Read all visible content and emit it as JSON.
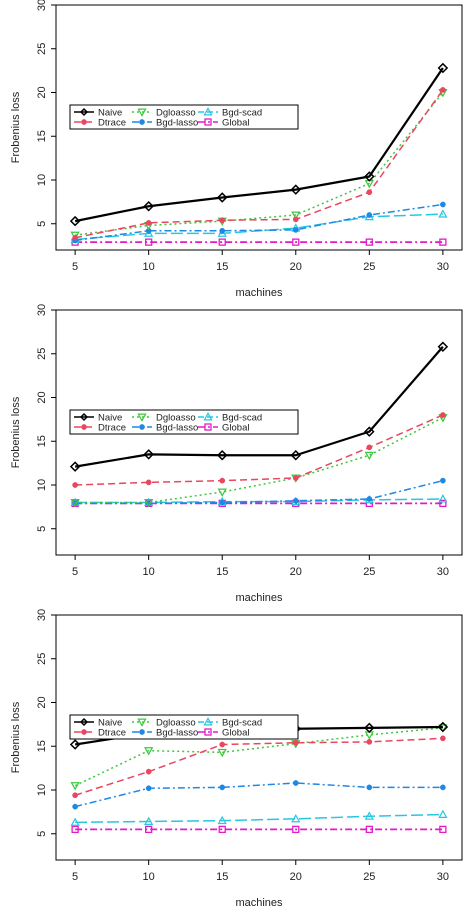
{
  "chart_data": [
    {
      "type": "line",
      "xlabel": "machines",
      "ylabel": "Frobenius loss",
      "x": [
        5,
        10,
        15,
        20,
        25,
        30
      ],
      "xticks": [
        "5",
        "10",
        "15",
        "20",
        "25",
        "30"
      ],
      "yticks": [
        "5",
        "10",
        "15",
        "20",
        "25",
        "30"
      ],
      "ylim": [
        2,
        30
      ],
      "series": [
        {
          "name": "Naive",
          "values": [
            5.3,
            7.0,
            8.0,
            8.9,
            10.4,
            22.8
          ]
        },
        {
          "name": "Dtrace",
          "values": [
            3.4,
            5.1,
            5.4,
            5.5,
            8.6,
            20.3
          ]
        },
        {
          "name": "Dgloasso",
          "values": [
            3.7,
            4.8,
            5.3,
            6.0,
            9.6,
            20.0
          ]
        },
        {
          "name": "Bgd-lasso",
          "values": [
            3.1,
            4.2,
            4.2,
            4.3,
            6.0,
            7.2
          ]
        },
        {
          "name": "Bgd-scad",
          "values": [
            3.2,
            3.9,
            3.9,
            4.5,
            5.8,
            6.1
          ]
        },
        {
          "name": "Global",
          "values": [
            2.9,
            2.9,
            2.9,
            2.9,
            2.9,
            2.9
          ]
        }
      ]
    },
    {
      "type": "line",
      "xlabel": "machines",
      "ylabel": "Frobenius loss",
      "x": [
        5,
        10,
        15,
        20,
        25,
        30
      ],
      "xticks": [
        "5",
        "10",
        "15",
        "20",
        "25",
        "30"
      ],
      "yticks": [
        "5",
        "10",
        "15",
        "20",
        "25",
        "30"
      ],
      "ylim": [
        2,
        30
      ],
      "series": [
        {
          "name": "Naive",
          "values": [
            12.1,
            13.5,
            13.4,
            13.4,
            16.1,
            25.8
          ]
        },
        {
          "name": "Dtrace",
          "values": [
            10.0,
            10.3,
            10.5,
            10.8,
            14.3,
            18.0
          ]
        },
        {
          "name": "Dgloasso",
          "values": [
            8.0,
            8.0,
            9.2,
            10.8,
            13.4,
            17.7
          ]
        },
        {
          "name": "Bgd-lasso",
          "values": [
            7.9,
            7.9,
            8.0,
            8.2,
            8.4,
            10.5
          ]
        },
        {
          "name": "Bgd-scad",
          "values": [
            8.0,
            8.0,
            8.1,
            8.1,
            8.3,
            8.4
          ]
        },
        {
          "name": "Global",
          "values": [
            7.9,
            7.9,
            7.9,
            7.9,
            7.9,
            7.9
          ]
        }
      ]
    },
    {
      "type": "line",
      "xlabel": "machines",
      "ylabel": "Frobenius loss",
      "x": [
        5,
        10,
        15,
        20,
        25,
        30
      ],
      "xticks": [
        "5",
        "10",
        "15",
        "20",
        "25",
        "30"
      ],
      "yticks": [
        "5",
        "10",
        "15",
        "20",
        "25",
        "30"
      ],
      "ylim": [
        2,
        30
      ],
      "series": [
        {
          "name": "Naive",
          "values": [
            15.2,
            16.5,
            16.8,
            17.0,
            17.1,
            17.2
          ]
        },
        {
          "name": "Dtrace",
          "values": [
            9.4,
            12.1,
            15.2,
            15.4,
            15.5,
            15.9
          ]
        },
        {
          "name": "Dgloasso",
          "values": [
            10.5,
            14.5,
            14.3,
            15.3,
            16.3,
            17.1
          ]
        },
        {
          "name": "Bgd-lasso",
          "values": [
            8.1,
            10.2,
            10.3,
            10.8,
            10.3,
            10.3
          ]
        },
        {
          "name": "Bgd-scad",
          "values": [
            6.3,
            6.4,
            6.5,
            6.7,
            7.0,
            7.2
          ]
        },
        {
          "name": "Global",
          "values": [
            5.5,
            5.5,
            5.5,
            5.5,
            5.5,
            5.5
          ]
        }
      ]
    }
  ],
  "styles": {
    "Naive": {
      "color": "#000000",
      "dash": "",
      "marker": "diamond",
      "width": 2.2
    },
    "Dtrace": {
      "color": "#E8475F",
      "dash": "7,4",
      "marker": "dot",
      "width": 1.5
    },
    "Dgloasso": {
      "color": "#3CC83C",
      "dash": "2,3",
      "marker": "triangle-down",
      "width": 1.5
    },
    "Bgd-lasso": {
      "color": "#1E88E5",
      "dash": "7,3,2,3",
      "marker": "dot",
      "width": 1.5
    },
    "Bgd-scad": {
      "color": "#29C6E0",
      "dash": "12,4",
      "marker": "triangle-up",
      "width": 1.5
    },
    "Global": {
      "color": "#E21BC8",
      "dash": "7,3,2,3",
      "marker": "square",
      "width": 1.8
    }
  },
  "legend_layout": {
    "columns": [
      [
        "Naive",
        "Dtrace"
      ],
      [
        "Dgloasso",
        "Bgd-lasso"
      ],
      [
        "Bgd-scad",
        "Global"
      ]
    ]
  }
}
